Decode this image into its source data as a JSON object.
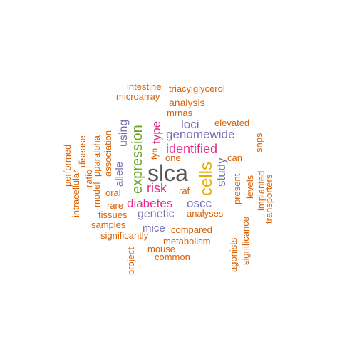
{
  "colors": {
    "orange": "#d95f02",
    "purple": "#7570b3",
    "magenta": "#e7298a",
    "green": "#66a61e",
    "gold": "#e6ab02",
    "gray": "#555555"
  },
  "words": [
    {
      "text": "slca",
      "color": "gray"
    },
    {
      "text": "cells",
      "color": "gold"
    },
    {
      "text": "expression",
      "color": "green"
    },
    {
      "text": "identified",
      "color": "magenta"
    },
    {
      "text": "diabetes",
      "color": "magenta"
    },
    {
      "text": "risk",
      "color": "magenta"
    },
    {
      "text": "type",
      "color": "magenta"
    },
    {
      "text": "study",
      "color": "purple"
    },
    {
      "text": "genomewide",
      "color": "purple"
    },
    {
      "text": "loci",
      "color": "purple"
    },
    {
      "text": "oscc",
      "color": "purple"
    },
    {
      "text": "genetic",
      "color": "purple"
    },
    {
      "text": "using",
      "color": "purple"
    },
    {
      "text": "allele",
      "color": "purple"
    },
    {
      "text": "mice",
      "color": "purple"
    },
    {
      "text": "analysis",
      "color": "orange"
    },
    {
      "text": "mrnas",
      "color": "orange"
    },
    {
      "text": "intestine",
      "color": "orange"
    },
    {
      "text": "triacylglycerol",
      "color": "orange"
    },
    {
      "text": "microarray",
      "color": "orange"
    },
    {
      "text": "elevated",
      "color": "orange"
    },
    {
      "text": "association",
      "color": "orange"
    },
    {
      "text": "disease",
      "color": "orange"
    },
    {
      "text": "performed",
      "color": "orange"
    },
    {
      "text": "intracellular",
      "color": "orange"
    },
    {
      "text": "ratio",
      "color": "orange"
    },
    {
      "text": "model",
      "color": "orange"
    },
    {
      "text": "pparalpha",
      "color": "orange"
    },
    {
      "text": "oral",
      "color": "orange"
    },
    {
      "text": "rare",
      "color": "orange"
    },
    {
      "text": "tissues",
      "color": "orange"
    },
    {
      "text": "samples",
      "color": "orange"
    },
    {
      "text": "significantly",
      "color": "orange"
    },
    {
      "text": "project",
      "color": "orange"
    },
    {
      "text": "mouse",
      "color": "orange"
    },
    {
      "text": "common",
      "color": "orange"
    },
    {
      "text": "metabolism",
      "color": "orange"
    },
    {
      "text": "compared",
      "color": "orange"
    },
    {
      "text": "analyses",
      "color": "orange"
    },
    {
      "text": "raf",
      "color": "orange"
    },
    {
      "text": "one",
      "color": "orange"
    },
    {
      "text": "fyb",
      "color": "orange"
    },
    {
      "text": "can",
      "color": "orange"
    },
    {
      "text": "present",
      "color": "orange"
    },
    {
      "text": "levels",
      "color": "orange"
    },
    {
      "text": "implanted",
      "color": "orange"
    },
    {
      "text": "transporters",
      "color": "orange"
    },
    {
      "text": "snps",
      "color": "orange"
    },
    {
      "text": "agonists",
      "color": "orange"
    },
    {
      "text": "significance",
      "color": "orange"
    }
  ]
}
